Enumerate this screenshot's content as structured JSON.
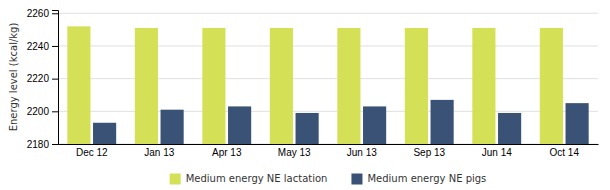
{
  "chart_data": {
    "type": "bar",
    "categories": [
      "Dec 12",
      "Jan 13",
      "Apr 13",
      "May 13",
      "Jun 13",
      "Sep 13",
      "Jun 14",
      "Oct 14"
    ],
    "series": [
      {
        "name": "Medium energy NE lactation",
        "color": "#d4e157",
        "values": [
          2252,
          2251,
          2251,
          2251,
          2251,
          2251,
          2251,
          2251
        ]
      },
      {
        "name": "Medium energy NE pigs",
        "color": "#3a5275",
        "values": [
          2193,
          2201,
          2203,
          2199,
          2203,
          2207,
          2199,
          2205
        ]
      }
    ],
    "ylabel": "Energy level (kcal/kg)",
    "ylim": [
      2180,
      2262
    ],
    "yticks": [
      2180,
      2200,
      2220,
      2240,
      2260
    ],
    "grid": true,
    "legend": "bottom"
  }
}
